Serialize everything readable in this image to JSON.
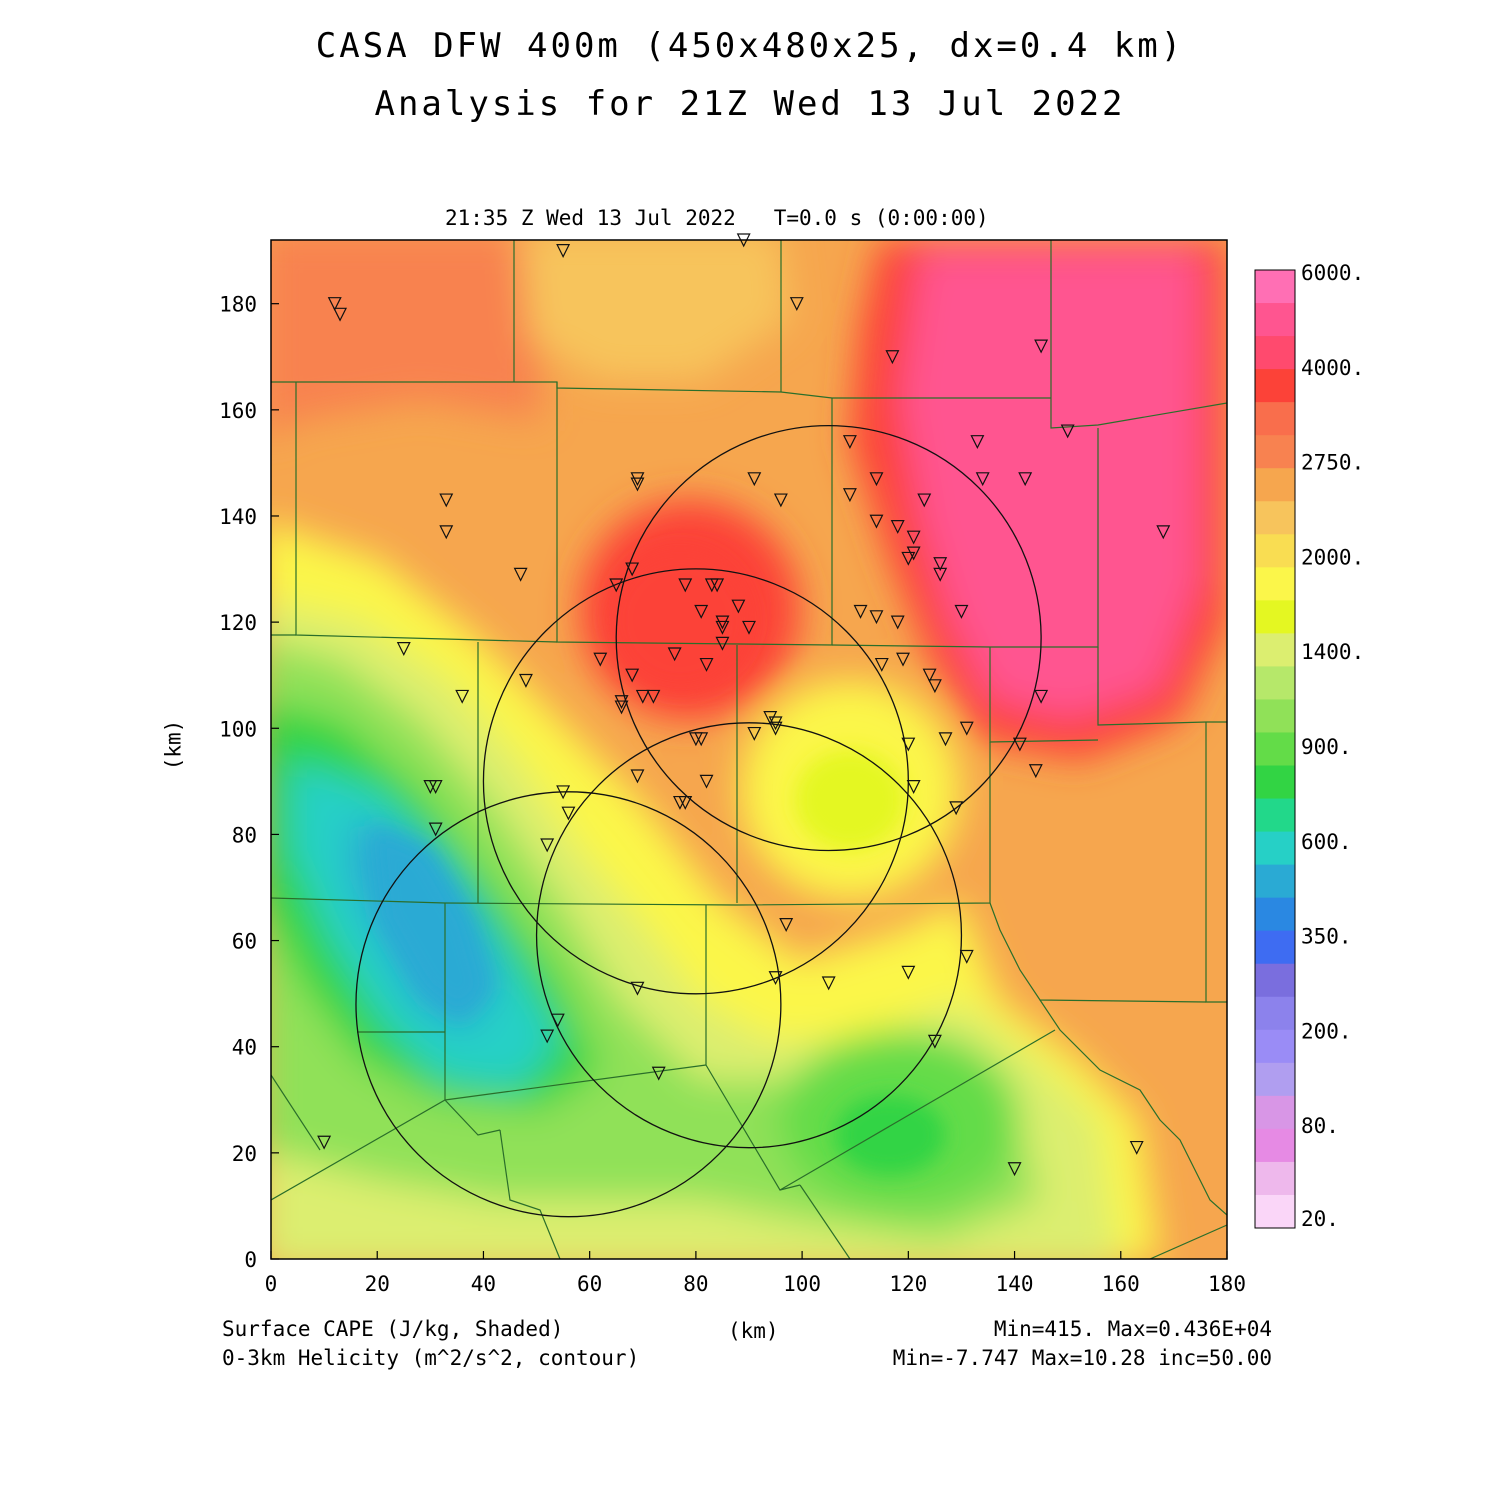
{
  "header": {
    "title_line1": "CASA DFW 400m (450x480x25, dx=0.4 km)",
    "title_line2": "Analysis for 21Z Wed 13 Jul 2022",
    "time_line": "21:35 Z Wed 13 Jul 2022   T=0.0 s (0:00:00)"
  },
  "axes": {
    "x_label": "(km)",
    "y_label": "(km)",
    "x_ticks": [
      0,
      20,
      40,
      60,
      80,
      100,
      120,
      140,
      160,
      180
    ],
    "y_ticks": [
      0,
      20,
      40,
      60,
      80,
      100,
      120,
      140,
      160,
      180
    ],
    "x_range": [
      0,
      180
    ],
    "y_range": [
      0,
      192
    ]
  },
  "footer": {
    "field1_label": "Surface CAPE (J/kg, Shaded)",
    "field2_label": "0-3km Helicity (m^2/s^2, contour)",
    "field1_stats": "Min=415. Max=0.436E+04",
    "field2_stats": "Min=-7.747 Max=10.28 inc=50.00"
  },
  "colorbar": {
    "labels": [
      "6000.",
      "4000.",
      "2750.",
      "2000.",
      "1400.",
      "900.",
      "600.",
      "350.",
      "200.",
      "80.",
      "20."
    ],
    "colors_top_to_bottom": [
      "#ff6fb4",
      "#ff5590",
      "#ff4a6e",
      "#fc4238",
      "#f96e4c",
      "#f88250",
      "#f6a64e",
      "#f7c45c",
      "#f9dd52",
      "#fbf64a",
      "#e4f722",
      "#dcee70",
      "#b6e86a",
      "#90e158",
      "#63dc48",
      "#32d444",
      "#22d88a",
      "#26d0c6",
      "#2aaad4",
      "#2a88e2",
      "#3e6cf2",
      "#7a6ede",
      "#8c82ec",
      "#9a8cf6",
      "#b09ef0",
      "#d896e6",
      "#e68ae4",
      "#eeb8ec",
      "#fad6f8"
    ]
  },
  "chart_data": {
    "type": "heatmap",
    "field": "Surface CAPE",
    "units": "J/kg",
    "min": 415,
    "max": 4360,
    "regions": [
      {
        "x": 110,
        "y": 140,
        "value": 3500
      },
      {
        "x": 165,
        "y": 150,
        "value": 3400
      },
      {
        "x": 75,
        "y": 125,
        "value": 3000
      },
      {
        "x": 10,
        "y": 180,
        "value": 2600
      },
      {
        "x": 65,
        "y": 180,
        "value": 2100
      },
      {
        "x": 108,
        "y": 88,
        "value": 1700
      },
      {
        "x": 160,
        "y": 70,
        "value": 2300
      },
      {
        "x": 35,
        "y": 75,
        "value": 530
      },
      {
        "x": 48,
        "y": 45,
        "value": 600
      },
      {
        "x": 118,
        "y": 25,
        "value": 780
      },
      {
        "x": 100,
        "y": 10,
        "value": 1300
      }
    ],
    "helicity_range_circles": [
      {
        "cx": 105,
        "cy": 117,
        "r": 40
      },
      {
        "cx": 80,
        "cy": 90,
        "r": 40
      },
      {
        "cx": 90,
        "cy": 61,
        "r": 40
      },
      {
        "cx": 56,
        "cy": 48,
        "r": 40
      }
    ],
    "stations_km": [
      [
        12,
        180
      ],
      [
        13,
        178
      ],
      [
        55,
        190
      ],
      [
        89,
        192
      ],
      [
        99,
        180
      ],
      [
        117,
        170
      ],
      [
        145,
        172
      ],
      [
        150,
        156
      ],
      [
        168,
        137
      ],
      [
        33,
        143
      ],
      [
        33,
        137
      ],
      [
        47,
        129
      ],
      [
        69,
        146
      ],
      [
        69,
        147
      ],
      [
        91,
        147
      ],
      [
        96,
        143
      ],
      [
        109,
        154
      ],
      [
        109,
        144
      ],
      [
        114,
        147
      ],
      [
        114,
        139
      ],
      [
        118,
        138
      ],
      [
        123,
        143
      ],
      [
        121,
        136
      ],
      [
        120,
        132
      ],
      [
        121,
        133
      ],
      [
        126,
        131
      ],
      [
        126,
        129
      ],
      [
        133,
        154
      ],
      [
        134,
        147
      ],
      [
        142,
        147
      ],
      [
        130,
        122
      ],
      [
        111,
        122
      ],
      [
        114,
        121
      ],
      [
        118,
        120
      ],
      [
        65,
        127
      ],
      [
        68,
        130
      ],
      [
        78,
        127
      ],
      [
        83,
        127
      ],
      [
        84,
        127
      ],
      [
        81,
        122
      ],
      [
        88,
        123
      ],
      [
        90,
        119
      ],
      [
        85,
        120
      ],
      [
        85,
        119
      ],
      [
        85,
        116
      ],
      [
        76,
        114
      ],
      [
        82,
        112
      ],
      [
        62,
        113
      ],
      [
        68,
        110
      ],
      [
        70,
        106
      ],
      [
        72,
        106
      ],
      [
        66,
        105
      ],
      [
        66,
        104
      ],
      [
        25,
        115
      ],
      [
        36,
        106
      ],
      [
        48,
        109
      ],
      [
        115,
        112
      ],
      [
        119,
        113
      ],
      [
        124,
        110
      ],
      [
        125,
        108
      ],
      [
        145,
        106
      ],
      [
        94,
        102
      ],
      [
        95,
        101
      ],
      [
        95,
        100
      ],
      [
        131,
        100
      ],
      [
        127,
        98
      ],
      [
        141,
        97
      ],
      [
        91,
        99
      ],
      [
        80,
        98
      ],
      [
        81,
        98
      ],
      [
        120,
        97
      ],
      [
        144,
        92
      ],
      [
        30,
        89
      ],
      [
        31,
        89
      ],
      [
        69,
        91
      ],
      [
        82,
        90
      ],
      [
        121,
        89
      ],
      [
        77,
        86
      ],
      [
        78,
        86
      ],
      [
        129,
        85
      ],
      [
        55,
        88
      ],
      [
        56,
        84
      ],
      [
        31,
        81
      ],
      [
        52,
        78
      ],
      [
        97,
        63
      ],
      [
        131,
        57
      ],
      [
        95,
        53
      ],
      [
        120,
        54
      ],
      [
        105,
        52
      ],
      [
        69,
        51
      ],
      [
        54,
        45
      ],
      [
        52,
        42
      ],
      [
        125,
        41
      ],
      [
        73,
        35
      ],
      [
        10,
        22
      ],
      [
        140,
        17
      ],
      [
        163,
        21
      ]
    ]
  }
}
